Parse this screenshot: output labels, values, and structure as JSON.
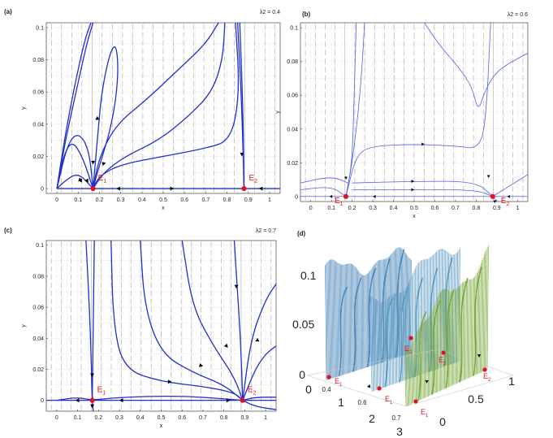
{
  "chart_data": [
    {
      "id": "a",
      "type": "line",
      "panel_label": "(a)",
      "parameter": "λ2 = 0.4",
      "xlabel": "x",
      "ylabel": "y",
      "xlim": [
        -0.05,
        1.05
      ],
      "ylim": [
        -0.003,
        0.103
      ],
      "xticks": [
        "0",
        "0.1",
        "0.2",
        "0.3",
        "0.4",
        "0.5",
        "0.6",
        "0.7",
        "0.8",
        "0.9",
        "1"
      ],
      "yticks": [
        "0",
        "0.02",
        "0.04",
        "0.06",
        "0.08",
        "0.1"
      ],
      "equilibria": [
        {
          "name": "E1",
          "x": 0.17,
          "y": 0.0
        },
        {
          "name": "E2",
          "x": 0.88,
          "y": 0.0
        }
      ],
      "curve_color": "#1f2fd0",
      "curve_width": 1.3,
      "trajectories": [
        [
          [
            0.0,
            0.0
          ],
          [
            0.04,
            0.03
          ],
          [
            0.09,
            0.06
          ],
          [
            0.14,
            0.09
          ],
          [
            0.17,
            0.103
          ]
        ],
        [
          [
            0.0,
            0.0
          ],
          [
            0.035,
            0.03
          ],
          [
            0.08,
            0.062
          ],
          [
            0.13,
            0.092
          ],
          [
            0.16,
            0.103
          ]
        ],
        [
          [
            0.17,
            0.0
          ],
          [
            0.19,
            0.03
          ],
          [
            0.21,
            0.06
          ],
          [
            0.25,
            0.085
          ],
          [
            0.28,
            0.09
          ],
          [
            0.29,
            0.07
          ],
          [
            0.26,
            0.04
          ],
          [
            0.19,
            0.01
          ],
          [
            0.17,
            0.0
          ]
        ],
        [
          [
            0.17,
            0.0
          ],
          [
            0.2,
            0.02
          ],
          [
            0.28,
            0.04
          ],
          [
            0.42,
            0.055
          ],
          [
            0.58,
            0.075
          ],
          [
            0.7,
            0.09
          ],
          [
            0.76,
            0.103
          ]
        ],
        [
          [
            0.17,
            0.0
          ],
          [
            0.22,
            0.01
          ],
          [
            0.32,
            0.02
          ],
          [
            0.48,
            0.03
          ],
          [
            0.62,
            0.045
          ],
          [
            0.73,
            0.06
          ],
          [
            0.78,
            0.08
          ],
          [
            0.79,
            0.103
          ]
        ],
        [
          [
            0.17,
            0.0
          ],
          [
            0.2,
            0.008
          ],
          [
            0.3,
            0.015
          ],
          [
            0.5,
            0.02
          ],
          [
            0.7,
            0.025
          ],
          [
            0.82,
            0.03
          ],
          [
            0.86,
            0.06
          ],
          [
            0.84,
            0.103
          ]
        ],
        [
          [
            0.17,
            0.0
          ],
          [
            0.12,
            0.02
          ],
          [
            0.07,
            0.03
          ],
          [
            0.03,
            0.02
          ],
          [
            0.0,
            0.0
          ]
        ],
        [
          [
            0.17,
            0.0
          ],
          [
            0.1,
            0.01
          ],
          [
            0.04,
            0.005
          ],
          [
            0.0,
            0.0
          ]
        ],
        [
          [
            0.17,
            0.0
          ],
          [
            0.15,
            0.025
          ],
          [
            0.1,
            0.035
          ],
          [
            0.05,
            0.028
          ],
          [
            0.0,
            0.0
          ]
        ],
        [
          [
            0.0,
            0.0
          ],
          [
            0.5,
            0.0
          ],
          [
            0.88,
            0.0
          ],
          [
            1.05,
            0.0
          ]
        ],
        [
          [
            0.85,
            0.103
          ],
          [
            0.87,
            0.05
          ],
          [
            0.88,
            0.0
          ]
        ],
        [
          [
            0.86,
            0.103
          ],
          [
            0.875,
            0.05
          ],
          [
            0.88,
            0.0
          ]
        ]
      ],
      "arrows": [
        [
          0.13,
          0.005,
          -1,
          0
        ],
        [
          0.1,
          0.005,
          -1,
          0
        ],
        [
          0.17,
          0.015,
          0,
          -1
        ],
        [
          0.19,
          0.045,
          0,
          1
        ],
        [
          0.23,
          0.016,
          1,
          0.3
        ],
        [
          0.55,
          0.0,
          1,
          0
        ],
        [
          0.28,
          0.0,
          -1,
          0
        ],
        [
          0.87,
          0.02,
          0,
          -1
        ],
        [
          0.95,
          0.0,
          -1,
          0
        ],
        [
          0.12,
          0.005,
          1,
          -0.3
        ]
      ]
    },
    {
      "id": "b",
      "type": "line",
      "panel_label": "(b)",
      "parameter": "λ2 = 0.6",
      "xlabel": "x",
      "ylabel": "y",
      "xlim": [
        -0.05,
        1.05
      ],
      "ylim": [
        -0.003,
        0.103
      ],
      "xticks": [
        "0",
        "0.1",
        "0.2",
        "0.3",
        "0.4",
        "0.5",
        "0.6",
        "0.7",
        "0.8",
        "0.9",
        "1"
      ],
      "yticks": [
        "0",
        "0.02",
        "0.04",
        "0.06",
        "0.08",
        "0.1"
      ],
      "equilibria": [
        {
          "name": "E1",
          "x": 0.17,
          "y": 0.0
        },
        {
          "name": "E2",
          "x": 0.88,
          "y": 0.0
        }
      ],
      "curve_color": "#5060e8",
      "curve_width": 0.8,
      "trajectories": [
        [
          [
            0.17,
            0.0
          ],
          [
            0.2,
            0.02
          ],
          [
            0.23,
            0.05
          ],
          [
            0.25,
            0.08
          ],
          [
            0.26,
            0.103
          ]
        ],
        [
          [
            0.17,
            0.0
          ],
          [
            0.2,
            0.02
          ],
          [
            0.21,
            0.06
          ],
          [
            0.22,
            0.103
          ]
        ],
        [
          [
            0.17,
            0.0
          ],
          [
            0.22,
            0.025
          ],
          [
            0.3,
            0.03
          ],
          [
            0.5,
            0.031
          ],
          [
            0.7,
            0.03
          ],
          [
            0.82,
            0.028
          ],
          [
            0.85,
            0.05
          ],
          [
            0.87,
            0.103
          ]
        ],
        [
          [
            0.55,
            0.103
          ],
          [
            0.62,
            0.09
          ],
          [
            0.72,
            0.076
          ],
          [
            0.78,
            0.065
          ],
          [
            0.81,
            0.05
          ],
          [
            0.84,
            0.062
          ],
          [
            0.9,
            0.075
          ],
          [
            1.05,
            0.085
          ]
        ],
        [
          [
            -0.05,
            0.004
          ],
          [
            0.1,
            0.006
          ],
          [
            0.17,
            0.0
          ]
        ],
        [
          [
            -0.05,
            0.008
          ],
          [
            0.1,
            0.012
          ],
          [
            0.18,
            0.008
          ]
        ],
        [
          [
            0.2,
            0.008
          ],
          [
            0.5,
            0.009
          ],
          [
            0.8,
            0.009
          ],
          [
            0.88,
            0.0
          ]
        ],
        [
          [
            0.2,
            0.004
          ],
          [
            0.5,
            0.004
          ],
          [
            0.8,
            0.004
          ],
          [
            0.88,
            0.0
          ]
        ],
        [
          [
            -0.05,
            0.0
          ],
          [
            1.05,
            0.0
          ]
        ],
        [
          [
            0.88,
            0.0
          ],
          [
            1.05,
            0.013
          ]
        ],
        [
          [
            0.88,
            0.0
          ],
          [
            0.9,
            -0.003
          ]
        ]
      ],
      "arrows": [
        [
          0.55,
          0.031,
          1,
          0
        ],
        [
          0.5,
          0.009,
          1,
          0
        ],
        [
          0.5,
          0.004,
          1,
          0
        ],
        [
          0.17,
          0.01,
          0,
          -1
        ],
        [
          0.86,
          0.011,
          0,
          -1
        ],
        [
          0.09,
          0.0,
          -1,
          0
        ],
        [
          0.3,
          0.0,
          -1,
          0
        ],
        [
          0.95,
          0.0,
          -1,
          0
        ],
        [
          0.89,
          -0.004,
          0,
          -1
        ]
      ]
    },
    {
      "id": "c",
      "type": "line",
      "panel_label": "(c)",
      "parameter": "λ2 = 0.7",
      "xlabel": "x",
      "ylabel": "y",
      "xlim": [
        -0.05,
        1.05
      ],
      "ylim": [
        -0.007,
        0.103
      ],
      "xticks": [
        "0",
        "0.1",
        "0.2",
        "0.3",
        "0.4",
        "0.5",
        "0.6",
        "0.7",
        "0.8",
        "0.9",
        "1"
      ],
      "yticks": [
        "0",
        "0.02",
        "0.04",
        "0.06",
        "0.08",
        "0.1"
      ],
      "equilibria": [
        {
          "name": "E1",
          "x": 0.17,
          "y": 0.0
        },
        {
          "name": "E2",
          "x": 0.89,
          "y": 0.0
        }
      ],
      "curve_color": "#1f2fd0",
      "curve_width": 1.3,
      "trajectories": [
        [
          [
            0.14,
            0.103
          ],
          [
            0.16,
            0.05
          ],
          [
            0.17,
            0.0
          ],
          [
            0.175,
            -0.007
          ]
        ],
        [
          [
            0.18,
            0.103
          ],
          [
            0.175,
            0.05
          ],
          [
            0.17,
            0.0
          ]
        ],
        [
          [
            0.26,
            0.103
          ],
          [
            0.27,
            0.05
          ],
          [
            0.32,
            0.02
          ],
          [
            0.5,
            0.012
          ],
          [
            0.7,
            0.009
          ],
          [
            0.85,
            0.005
          ],
          [
            0.89,
            0.0
          ]
        ],
        [
          [
            0.4,
            0.103
          ],
          [
            0.42,
            0.06
          ],
          [
            0.5,
            0.03
          ],
          [
            0.65,
            0.018
          ],
          [
            0.8,
            0.01
          ],
          [
            0.89,
            0.0
          ]
        ],
        [
          [
            0.6,
            0.103
          ],
          [
            0.65,
            0.06
          ],
          [
            0.75,
            0.035
          ],
          [
            0.85,
            0.015
          ],
          [
            0.89,
            0.0
          ]
        ],
        [
          [
            0.89,
            0.0
          ],
          [
            0.93,
            0.04
          ],
          [
            1.0,
            0.065
          ],
          [
            1.05,
            0.075
          ]
        ],
        [
          [
            0.89,
            0.0
          ],
          [
            0.95,
            0.02
          ],
          [
            1.0,
            0.03
          ],
          [
            1.05,
            0.035
          ]
        ],
        [
          [
            0.89,
            0.0
          ],
          [
            0.88,
            0.04
          ],
          [
            0.86,
            0.08
          ],
          [
            0.85,
            0.103
          ]
        ],
        [
          [
            -0.05,
            0.0
          ],
          [
            0.17,
            0.0
          ],
          [
            0.89,
            0.0
          ],
          [
            1.05,
            0.0
          ]
        ],
        [
          [
            0.0,
            0.0
          ],
          [
            0.1,
            0.002
          ],
          [
            0.17,
            0.0
          ],
          [
            0.3,
            0.002
          ],
          [
            0.6,
            0.003
          ],
          [
            0.89,
            0.0
          ]
        ],
        [
          [
            0.89,
            0.0
          ],
          [
            0.95,
            -0.004
          ],
          [
            1.05,
            -0.006
          ]
        ],
        [
          [
            0.89,
            0.0
          ],
          [
            0.95,
            0.002
          ],
          [
            1.05,
            0.002
          ]
        ]
      ],
      "arrows": [
        [
          0.17,
          0.015,
          0,
          -1
        ],
        [
          0.17,
          -0.005,
          0,
          -1
        ],
        [
          0.09,
          0.0,
          -1,
          0
        ],
        [
          0.55,
          0.012,
          1,
          0
        ],
        [
          0.7,
          0.022,
          1,
          -0.3
        ],
        [
          0.82,
          0.034,
          1,
          -1
        ],
        [
          0.95,
          0.038,
          -1,
          -0.5
        ],
        [
          0.86,
          0.072,
          0,
          -1
        ],
        [
          0.83,
          0.0,
          1,
          0
        ],
        [
          0.3,
          0.0,
          -1,
          0
        ]
      ]
    },
    {
      "id": "d",
      "type": "surface3d",
      "panel_label": "(d)",
      "description_ticks": {
        "z": [
          "0",
          "0.05",
          "0.1"
        ],
        "x_depth": [
          "0",
          "1",
          "2",
          "3"
        ],
        "right": [
          "0",
          "0.5",
          "1"
        ],
        "slice_labels": [
          "0.4",
          "0.6",
          "0.7"
        ]
      },
      "equilibria_labels": [
        "E1",
        "E1",
        "E1",
        "E2",
        "E2",
        "E2"
      ],
      "slice_colors": [
        "#4a86b8",
        "#5a9ac0",
        "#78a83a"
      ]
    }
  ]
}
